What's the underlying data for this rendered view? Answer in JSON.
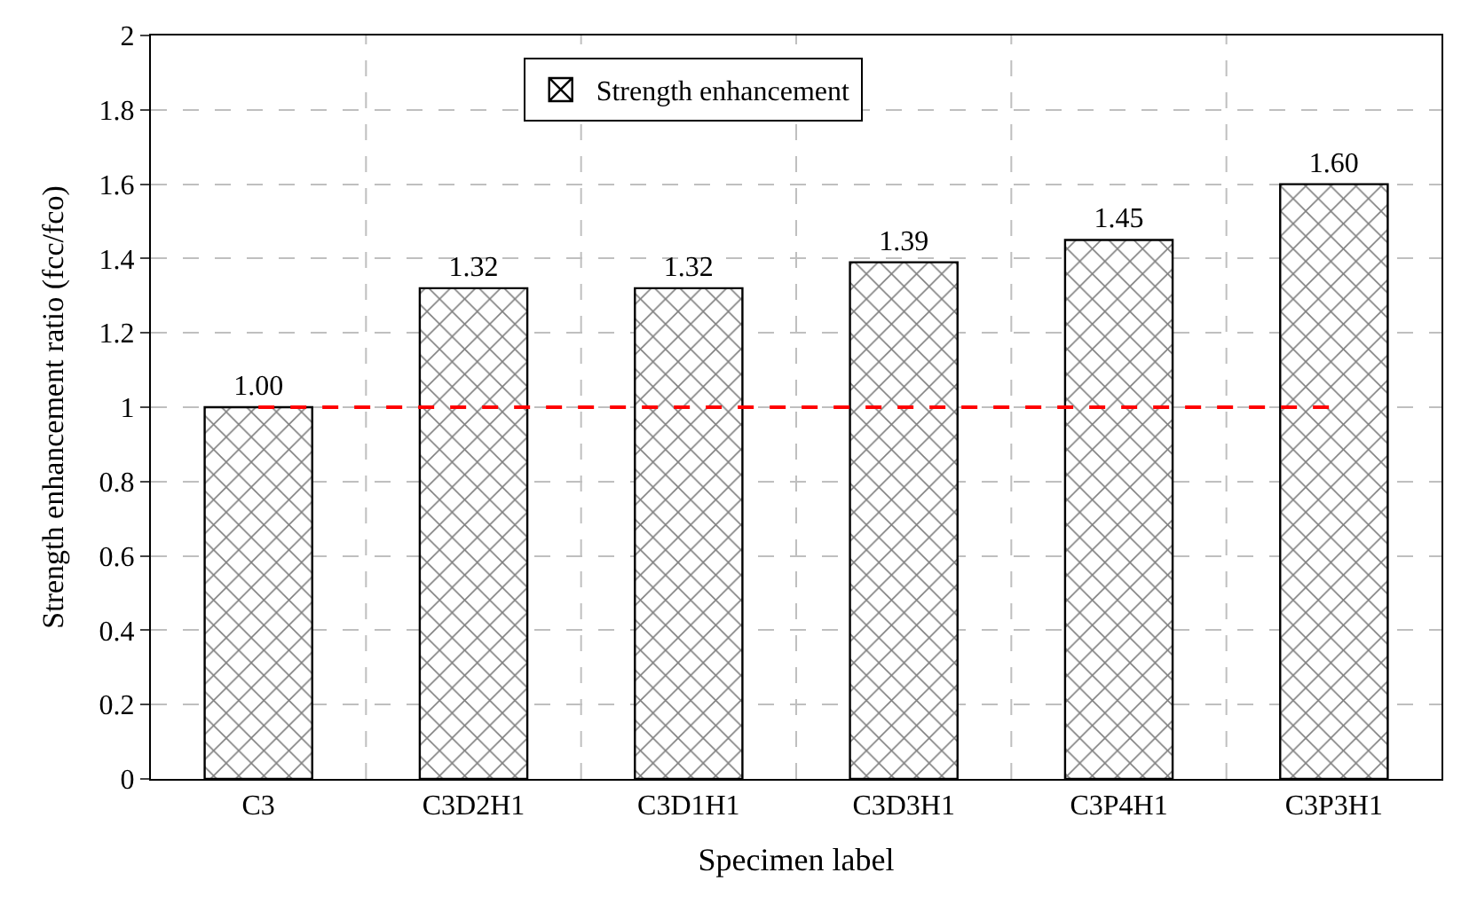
{
  "chart_data": {
    "type": "bar",
    "xlabel": "Specimen label",
    "ylabel": "Strength enhancement ratio (fcc/fco)",
    "categories": [
      "C3",
      "C3D2H1",
      "C3D1H1",
      "C3D3H1",
      "C3P4H1",
      "C3P3H1"
    ],
    "series": [
      {
        "name": "Strength enhancement",
        "color": "#000000",
        "values": [
          1.0,
          1.32,
          1.32,
          1.39,
          1.45,
          1.6
        ],
        "value_labels": [
          "1.00",
          "1.32",
          "1.32",
          "1.39",
          "1.45",
          "1.60"
        ]
      }
    ],
    "ylim": [
      0,
      2
    ],
    "yticks": [
      0,
      0.2,
      0.4,
      0.6,
      0.8,
      1,
      1.2,
      1.4,
      1.6,
      1.8,
      2
    ],
    "ref_lines": [
      {
        "axis": "y",
        "value": 1,
        "label": null,
        "color": "#ff0000",
        "line_style": "dashed"
      }
    ],
    "grid": true,
    "legend": "top"
  }
}
